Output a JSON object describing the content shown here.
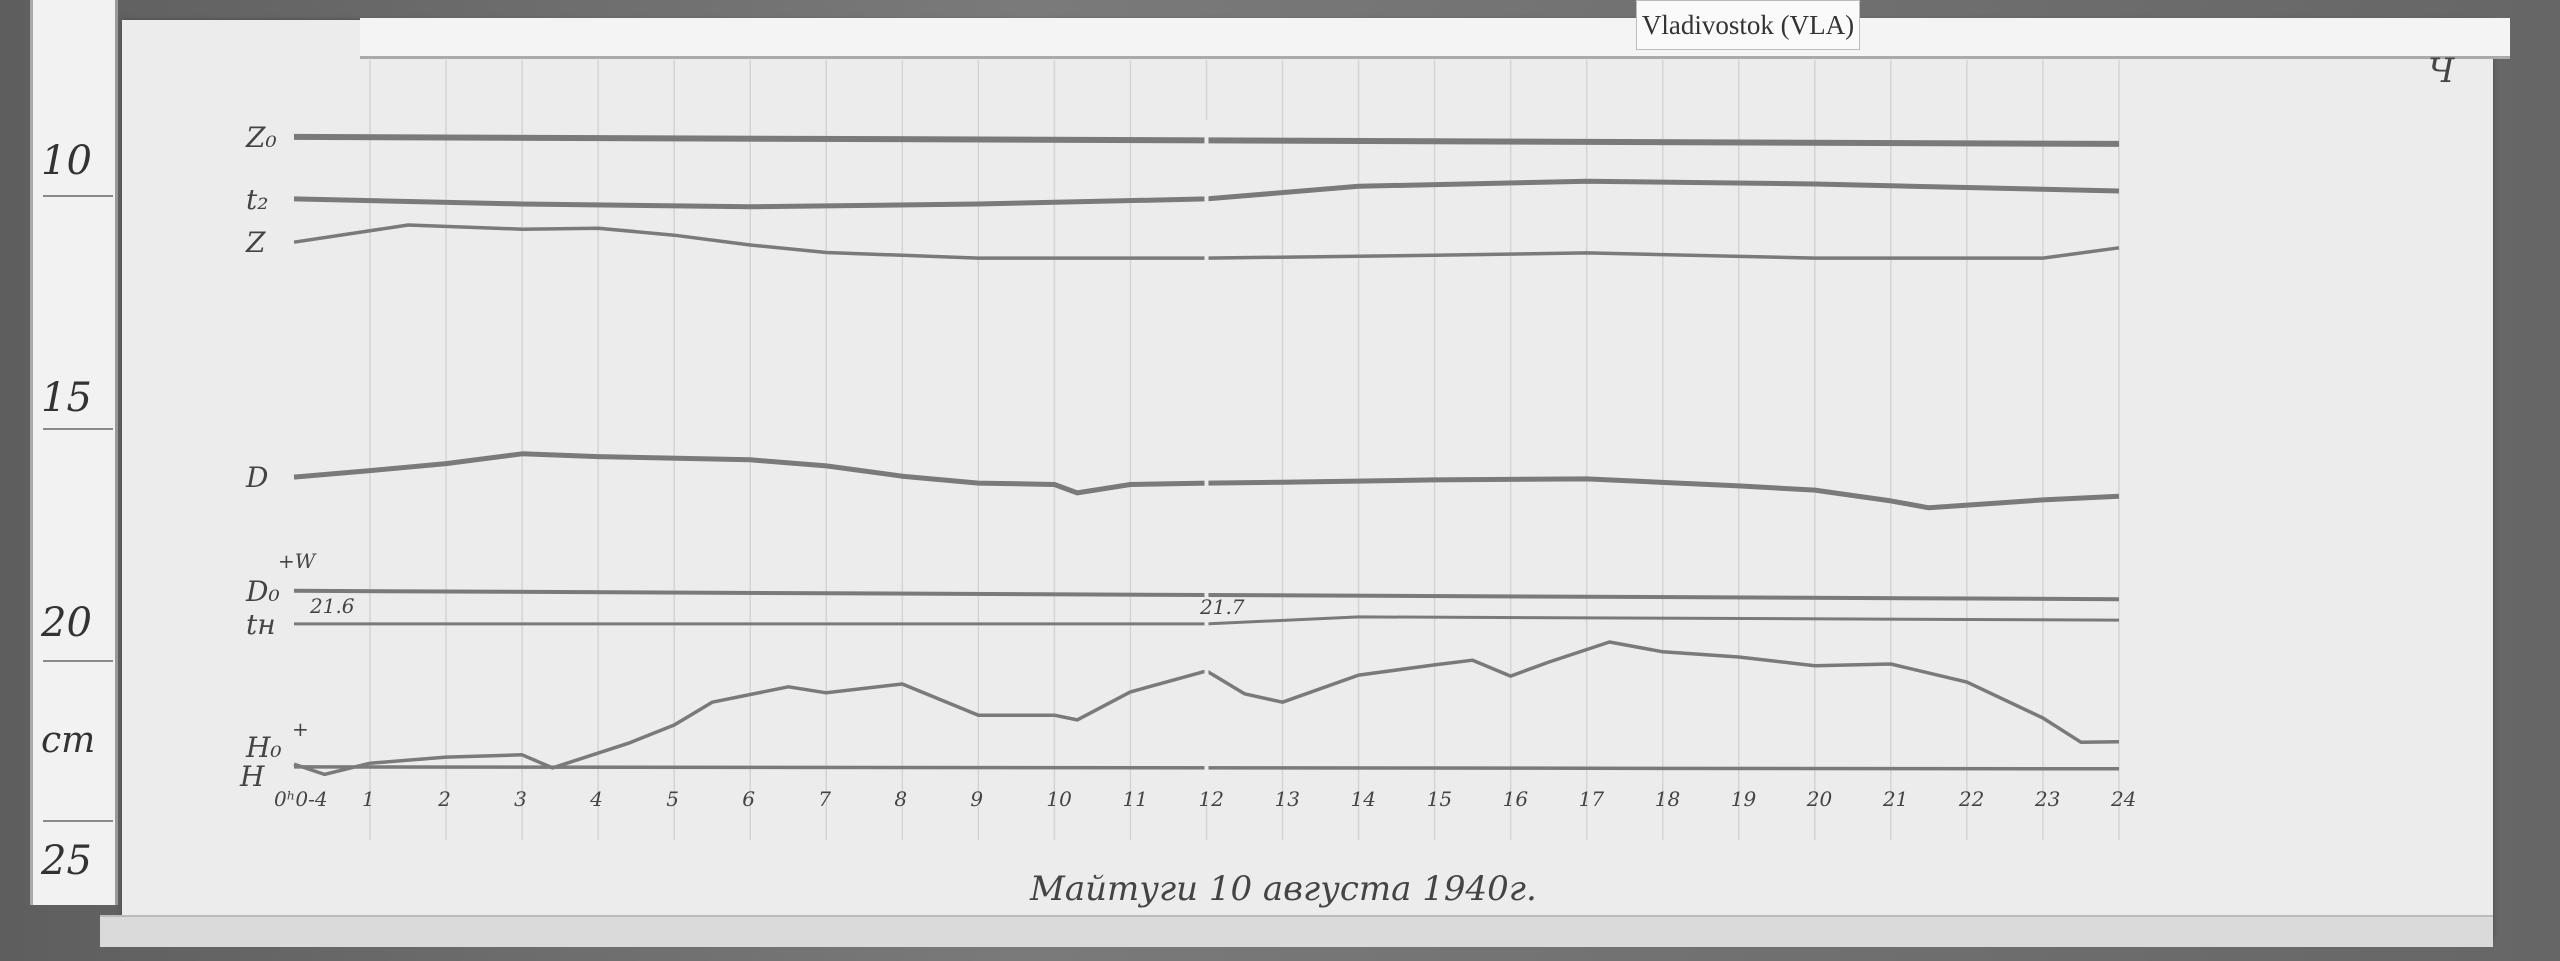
{
  "station_tag": "Vladivostok (VLA)",
  "sheet_mark": "Ч",
  "ruler": {
    "labels": [
      "10",
      "15",
      "20",
      "25"
    ],
    "values": [
      10,
      15,
      20,
      25
    ],
    "unit": "cm"
  },
  "chart_data": {
    "type": "line",
    "caption": "Майтуги 10 августа 1940г.",
    "x_unit": "hour",
    "xlim": [
      0,
      24
    ],
    "x_ticks": [
      0,
      1,
      2,
      3,
      4,
      5,
      6,
      7,
      8,
      9,
      10,
      11,
      12,
      13,
      14,
      15,
      16,
      17,
      18,
      19,
      20,
      21,
      22,
      23,
      24
    ],
    "x_tick_labels": [
      "0ʰ0-4",
      "1",
      "2",
      "3",
      "4",
      "5",
      "6",
      "7",
      "8",
      "9",
      "10",
      "11",
      "12",
      "13",
      "14",
      "15",
      "16",
      "17",
      "18",
      "19",
      "20",
      "21",
      "22",
      "23",
      "24"
    ],
    "y_unit": "cm (ruler scale, increasing downward)",
    "ylim": [
      9,
      25
    ],
    "grid": "vertical hour lines",
    "annotations": [
      {
        "text": "21.6",
        "x": 0.2
      },
      {
        "text": "21.7",
        "x": 12.1
      },
      {
        "text": "+W",
        "series": "D₀"
      },
      {
        "text": "+",
        "series": "H₀"
      }
    ],
    "series": [
      {
        "name": "Z₀",
        "x": [
          0,
          24
        ],
        "y": [
          9.44,
          9.59
        ]
      },
      {
        "name": "t₂",
        "x": [
          0,
          3,
          6,
          9,
          12,
          14,
          17,
          20,
          24
        ],
        "y": [
          10.77,
          10.88,
          10.94,
          10.88,
          10.77,
          10.5,
          10.39,
          10.45,
          10.6
        ]
      },
      {
        "name": "Z",
        "x": [
          0,
          1.5,
          3,
          4,
          5,
          6,
          7,
          9,
          12,
          15,
          17,
          20,
          23,
          24
        ],
        "y": [
          11.7,
          11.33,
          11.42,
          11.4,
          11.55,
          11.76,
          11.92,
          12.04,
          12.04,
          11.98,
          11.93,
          12.04,
          12.04,
          11.82
        ]
      },
      {
        "name": "D",
        "x": [
          0,
          1,
          2,
          3,
          4,
          6,
          7,
          8,
          9,
          10,
          10.3,
          11,
          12,
          13,
          15,
          17,
          19,
          20,
          21,
          21.5,
          23,
          24
        ],
        "y": [
          16.74,
          16.6,
          16.45,
          16.24,
          16.3,
          16.37,
          16.5,
          16.72,
          16.87,
          16.9,
          17.08,
          16.9,
          16.87,
          16.85,
          16.8,
          16.78,
          16.93,
          17.02,
          17.25,
          17.4,
          17.23,
          17.15
        ]
      },
      {
        "name": "D₀",
        "x": [
          0,
          24
        ],
        "y": [
          19.18,
          19.36
        ]
      },
      {
        "name": "tн",
        "x": [
          0,
          12,
          14,
          24
        ],
        "y": [
          19.89,
          19.89,
          19.74,
          19.81
        ]
      },
      {
        "name": "H₀",
        "x": [
          0,
          24
        ],
        "y": [
          22.96,
          23.0
        ]
      },
      {
        "name": "H",
        "x": [
          0,
          0.4,
          1,
          2,
          3,
          3.4,
          4.4,
          5,
          5.5,
          6.5,
          7,
          8,
          9,
          10,
          10.3,
          11,
          12,
          12.5,
          13,
          14,
          15,
          15.5,
          16,
          16.5,
          17.3,
          18,
          19,
          20,
          21,
          22,
          23,
          23.5,
          24
        ],
        "y": [
          22.9,
          23.12,
          22.88,
          22.75,
          22.7,
          22.98,
          22.45,
          22.06,
          21.57,
          21.24,
          21.37,
          21.18,
          21.85,
          21.85,
          21.95,
          21.35,
          20.9,
          21.39,
          21.57,
          20.99,
          20.77,
          20.67,
          21.01,
          20.71,
          20.28,
          20.49,
          20.6,
          20.79,
          20.75,
          21.14,
          21.91,
          22.43,
          22.42
        ]
      }
    ]
  },
  "trace_color": "#7a7a7a"
}
